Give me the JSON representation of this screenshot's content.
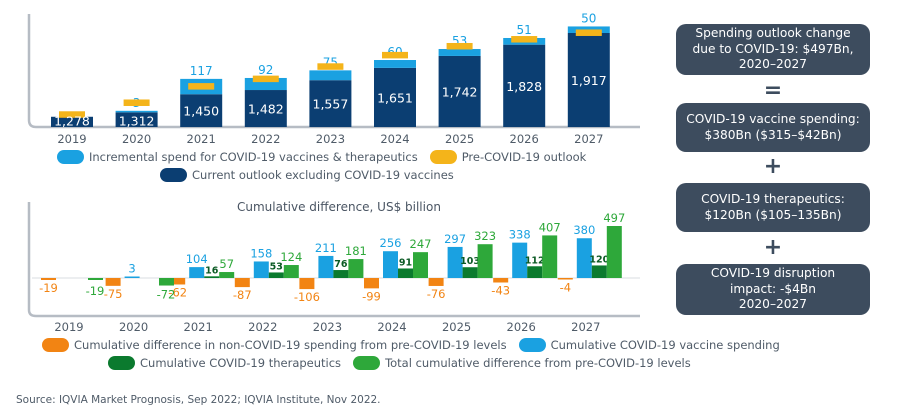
{
  "chart_data": [
    {
      "type": "bar",
      "stacked": true,
      "title": "",
      "xlabel": "",
      "ylabel": "",
      "categories": [
        "2019",
        "2020",
        "2021",
        "2022",
        "2023",
        "2024",
        "2025",
        "2026",
        "2027"
      ],
      "series": [
        {
          "name": "Current outlook excluding COVID-19 vaccines",
          "color": "#0b3e72",
          "values": [
            1278,
            1312,
            1450,
            1482,
            1557,
            1651,
            1742,
            1828,
            1917
          ]
        },
        {
          "name": "Incremental spend for COVID-19 vaccines & therapeutics",
          "color": "#1aa1e1",
          "values": [
            null,
            3,
            117,
            92,
            75,
            60,
            53,
            51,
            50
          ]
        },
        {
          "name": "Pre-COVID-19 outlook",
          "color": "#f4b41a",
          "marker": "dash",
          "values": [
            1297,
            1387,
            1512,
            1569,
            1663,
            1750,
            1818,
            1871,
            1921
          ]
        }
      ],
      "value_labels": {
        "current": [
          "1,278",
          "1,312",
          "1,450",
          "1,482",
          "1,557",
          "1,651",
          "1,742",
          "1,828",
          "1,917"
        ],
        "incremental": [
          "",
          "3",
          "117",
          "92",
          "75",
          "60",
          "53",
          "51",
          "50"
        ]
      },
      "ylim": [
        1200,
        2000
      ],
      "grid": false,
      "legend": [
        {
          "label": "Incremental spend for COVID-19 vaccines & therapeutics",
          "color": "#1aa1e1"
        },
        {
          "label": "Pre-COVID-19 outlook",
          "color": "#f4b41a"
        },
        {
          "label": "Current outlook excluding COVID-19 vaccines",
          "color": "#0b3e72"
        }
      ],
      "legend_position": "bottom"
    },
    {
      "type": "bar",
      "title": "Cumulative difference, US$ billion",
      "xlabel": "",
      "ylabel": "US$ billion",
      "categories": [
        "2019",
        "2020",
        "2021",
        "2022",
        "2023",
        "2024",
        "2025",
        "2026",
        "2027"
      ],
      "series": [
        {
          "name": "Cumulative difference in non-COVID-19 spending from pre-COVID-19 levels",
          "color": "#f28413",
          "values": [
            -19,
            -75,
            -62,
            -87,
            -106,
            -99,
            -76,
            -43,
            -4
          ]
        },
        {
          "name": "Cumulative COVID-19 vaccine spending",
          "color": "#1aa1e1",
          "values": [
            0,
            3,
            104,
            158,
            211,
            256,
            297,
            338,
            380
          ]
        },
        {
          "name": "Cumulative COVID-19 therapeutics",
          "color": "#0b7a2e",
          "values": [
            0,
            0,
            16,
            53,
            76,
            91,
            103,
            112,
            120
          ]
        },
        {
          "name": "Total cumulative difference from pre-COVID-19 levels",
          "color": "#2ea83a",
          "values": [
            -19,
            -72,
            57,
            124,
            181,
            247,
            323,
            407,
            497
          ]
        }
      ],
      "value_labels": {
        "noncovid": [
          "-19",
          "-75",
          "-62",
          "-87",
          "-106",
          "-99",
          "-76",
          "-43",
          "-4"
        ],
        "vaccine": [
          "",
          "3",
          "104",
          "158",
          "211",
          "256",
          "297",
          "338",
          "380"
        ],
        "therapeutics": [
          "",
          "",
          "16",
          "53",
          "76",
          "91",
          "103",
          "112",
          "120"
        ],
        "total": [
          "-19",
          "-72",
          "57",
          "124",
          "181",
          "247",
          "323",
          "407",
          "497"
        ]
      },
      "ylim": [
        -140,
        520
      ],
      "grid": false,
      "legend": [
        {
          "label": "Cumulative difference in non-COVID-19 spending from pre-COVID-19 levels",
          "color": "#f28413"
        },
        {
          "label": "Cumulative COVID-19 vaccine spending",
          "color": "#1aa1e1"
        },
        {
          "label": "Cumulative COVID-19 therapeutics",
          "color": "#0b7a2e"
        },
        {
          "label": "Total cumulative difference from pre-COVID-19 levels",
          "color": "#2ea83a"
        }
      ],
      "legend_position": "bottom"
    }
  ],
  "summary": {
    "boxes": [
      "Spending outlook change\ndue to COVID-19: $497Bn,\n2020–2027",
      "COVID-19 vaccine spending:\n$380Bn ($315–$42Bn)",
      "COVID-19 therapeutics:\n$120Bn ($105–135Bn)",
      "COVID-19 disruption\nimpact: -$4Bn\n2020–2027"
    ],
    "operators": [
      "=",
      "+",
      "+"
    ]
  },
  "source": "Source: IQVIA Market Prognosis, Sep 2022; IQVIA Institute, Nov 2022."
}
